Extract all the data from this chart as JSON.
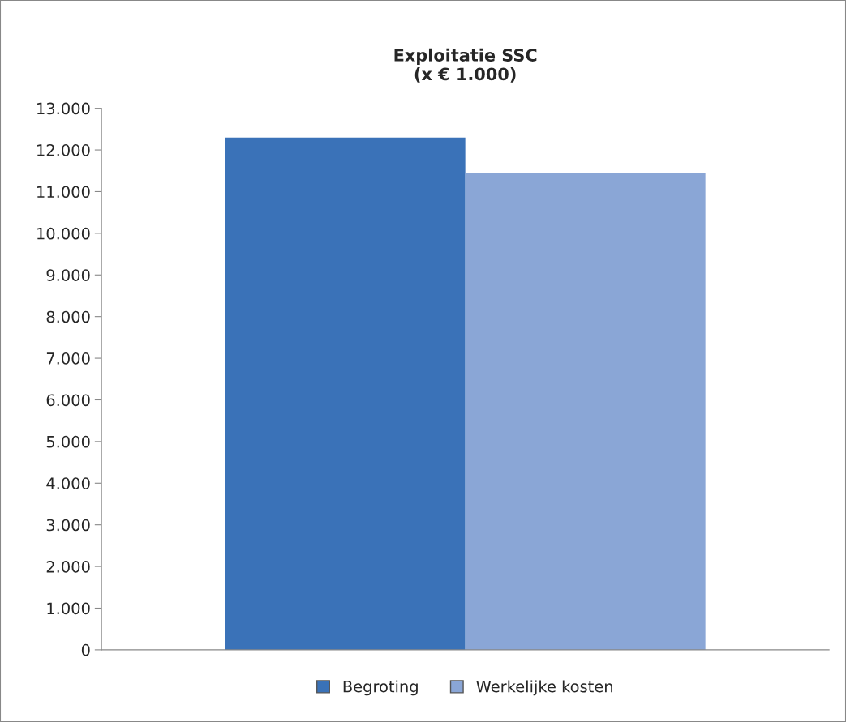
{
  "chart_data": {
    "type": "bar",
    "title": "Exploitatie SSC\n(x € 1.000)",
    "categories": [
      null
    ],
    "series": [
      {
        "name": "Begroting",
        "color": "#3a72b8",
        "values": [
          12300
        ]
      },
      {
        "name": "Werkelijke kosten",
        "color": "#8aa6d6",
        "values": [
          11450
        ]
      }
    ],
    "ylim": [
      0,
      13000
    ],
    "yticks": [
      {
        "value": 0,
        "label": "0"
      },
      {
        "value": 1000,
        "label": "1.000"
      },
      {
        "value": 2000,
        "label": "2.000"
      },
      {
        "value": 3000,
        "label": "3.000"
      },
      {
        "value": 4000,
        "label": "4.000"
      },
      {
        "value": 5000,
        "label": "5.000"
      },
      {
        "value": 6000,
        "label": "6.000"
      },
      {
        "value": 7000,
        "label": "7.000"
      },
      {
        "value": 8000,
        "label": "8.000"
      },
      {
        "value": 9000,
        "label": "9.000"
      },
      {
        "value": 10000,
        "label": "10.000"
      },
      {
        "value": 11000,
        "label": "11.000"
      },
      {
        "value": 12000,
        "label": "12.000"
      },
      {
        "value": 13000,
        "label": "13.000"
      }
    ],
    "grid": false,
    "legend": "bottom"
  }
}
